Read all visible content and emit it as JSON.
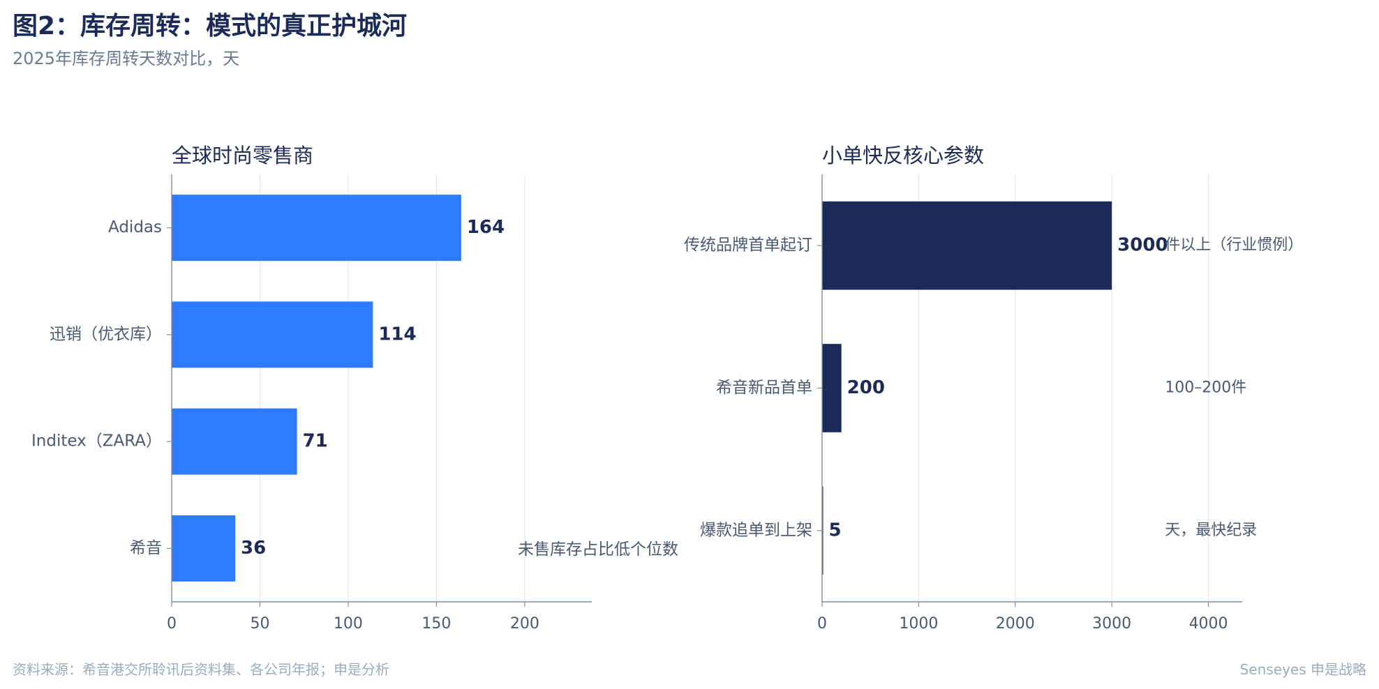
{
  "title": "图2：库存周转：模式的真正护城河",
  "subtitle": "2025年库存周转天数对比，天",
  "footer": {
    "source": "资料来源：希音港交所聆讯后资料集、各公司年报；申是分析",
    "brand": "Senseyes 申是战略"
  },
  "colors": {
    "title": "#1b2a57",
    "subtitle": "#6b7a90",
    "left_bar": "#2f7bff",
    "right_bar": "#1b2a57",
    "value_label": "#1b2a57",
    "axis_text": "#4a5872",
    "axis_line": "#7f8ea3",
    "grid": "#e3e7ee",
    "note": "#4a5872"
  },
  "chart_data": [
    {
      "type": "bar",
      "orientation": "horizontal",
      "title": "全球时尚零售商",
      "categories": [
        "Adidas",
        "迅销（优衣库）",
        "Inditex（ZARA）",
        "希音"
      ],
      "values": [
        164,
        114,
        71,
        36
      ],
      "value_labels": [
        "164",
        "114",
        "71",
        "36"
      ],
      "xlim": [
        0,
        238
      ],
      "xticks": [
        0,
        50,
        100,
        150,
        200
      ],
      "grid": true,
      "annotation": "未售库存占比低个位数",
      "annotation_category": "希音"
    },
    {
      "type": "bar",
      "orientation": "horizontal",
      "title": "小单快反核心参数",
      "categories": [
        "传统品牌首单起订",
        "希音新品首单",
        "爆款追单到上架"
      ],
      "values": [
        3000,
        200,
        5
      ],
      "value_labels": [
        "3000",
        "200",
        "5"
      ],
      "notes": [
        "件以上（行业惯例）",
        "100–200件",
        "天，最快纪录"
      ],
      "xlim": [
        0,
        4350
      ],
      "xticks": [
        0,
        1000,
        2000,
        3000,
        4000
      ],
      "grid": true
    }
  ]
}
